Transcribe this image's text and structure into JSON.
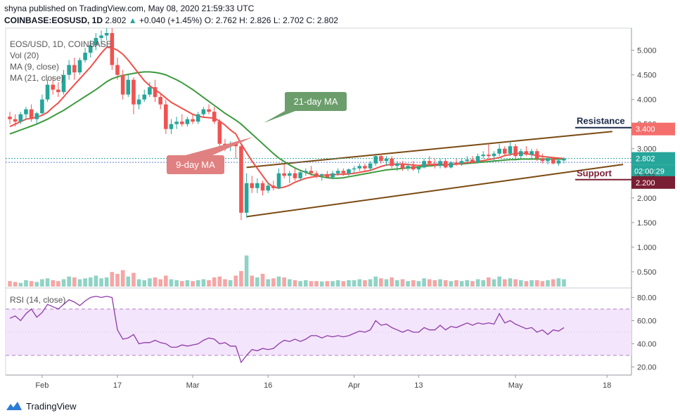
{
  "header": {
    "published_line": "shyna published on TradingView.com, May 08, 2020 21:59:33 UTC",
    "symbol": "COINBASE:EOSUSD, 1D",
    "last": "2.802",
    "change": "+0.040 (+1.45%)",
    "open": "O: 2.762",
    "high": "H: 2.826",
    "low": "L: 2.702",
    "close": "C: 2.802"
  },
  "legend": {
    "title": "EOS/USD, 1D, COINBASE",
    "vol": "Vol (20)",
    "ma9": "MA (9, close)",
    "ma21": "MA (21, close)",
    "rsi": "RSI (14, close)"
  },
  "annotations": {
    "ma21_callout": "21-day MA",
    "ma9_callout": "9-day MA",
    "resistance": "Resistance",
    "support": "Support"
  },
  "price_badges": {
    "resistance": "3.400",
    "last": "2.802",
    "countdown": "02:00:29",
    "support_line": "2.723",
    "support": "2.200"
  },
  "footer": {
    "brand": "TradingView"
  },
  "colors": {
    "up": "#26a69a",
    "down": "#ef5350",
    "ma9": "#f0504a",
    "ma21": "#3e9a3e",
    "channel": "#7b4a12",
    "rsi": "#8e3aa8",
    "callout_green": "#6b9e6b",
    "callout_red": "#e08080",
    "resistance_badge": "#f46f6c",
    "support_badge": "#7a1f33"
  },
  "chart_data": {
    "type": "candlestick",
    "price_axis": {
      "ticks": [
        "5.000",
        "4.500",
        "4.000",
        "3.500",
        "3.000",
        "2.500",
        "2.000",
        "1.500",
        "1.000",
        "0.500"
      ],
      "ylim": [
        0.2,
        5.45
      ]
    },
    "rsi_axis": {
      "ticks": [
        "80.00",
        "60.00",
        "40.00",
        "20.00"
      ],
      "ylim": [
        13,
        87
      ],
      "bands": [
        30,
        70
      ]
    },
    "x_ticks": [
      {
        "label": "Feb",
        "i": 6
      },
      {
        "label": "17",
        "i": 20
      },
      {
        "label": "Mar",
        "i": 34
      },
      {
        "label": "16",
        "i": 48
      },
      {
        "label": "Apr",
        "i": 64
      },
      {
        "label": "13",
        "i": 76
      },
      {
        "label": "May",
        "i": 94
      },
      {
        "label": "18",
        "i": 111
      }
    ],
    "ohlc": [
      [
        3.65,
        3.75,
        3.5,
        3.6
      ],
      [
        3.6,
        3.7,
        3.45,
        3.55
      ],
      [
        3.55,
        3.75,
        3.5,
        3.7
      ],
      [
        3.7,
        3.85,
        3.6,
        3.8
      ],
      [
        3.8,
        3.9,
        3.55,
        3.6
      ],
      [
        3.6,
        3.75,
        3.5,
        3.72
      ],
      [
        3.72,
        4.1,
        3.7,
        4.0
      ],
      [
        4.0,
        4.4,
        3.95,
        4.3
      ],
      [
        4.3,
        4.45,
        4.1,
        4.2
      ],
      [
        4.2,
        4.35,
        4.05,
        4.15
      ],
      [
        4.15,
        4.6,
        4.1,
        4.5
      ],
      [
        4.5,
        4.8,
        4.4,
        4.7
      ],
      [
        4.7,
        4.85,
        4.4,
        4.55
      ],
      [
        4.55,
        4.85,
        4.5,
        4.8
      ],
      [
        4.8,
        5.05,
        4.75,
        4.95
      ],
      [
        4.95,
        5.2,
        4.85,
        5.1
      ],
      [
        5.1,
        5.35,
        5.0,
        5.25
      ],
      [
        5.25,
        5.4,
        5.1,
        5.3
      ],
      [
        5.3,
        5.45,
        5.2,
        5.35
      ],
      [
        5.35,
        5.45,
        4.6,
        4.7
      ],
      [
        4.7,
        4.85,
        4.4,
        4.5
      ],
      [
        4.5,
        4.6,
        4.0,
        4.1
      ],
      [
        4.1,
        4.5,
        4.05,
        4.4
      ],
      [
        4.4,
        4.45,
        3.7,
        3.9
      ],
      [
        3.9,
        4.1,
        3.8,
        4.0
      ],
      [
        4.0,
        4.2,
        3.95,
        4.1
      ],
      [
        4.1,
        4.35,
        4.05,
        4.25
      ],
      [
        4.25,
        4.4,
        3.95,
        4.05
      ],
      [
        4.05,
        4.1,
        3.8,
        3.9
      ],
      [
        3.9,
        4.0,
        3.3,
        3.4
      ],
      [
        3.4,
        3.6,
        3.3,
        3.5
      ],
      [
        3.5,
        3.65,
        3.4,
        3.55
      ],
      [
        3.55,
        3.7,
        3.45,
        3.5
      ],
      [
        3.5,
        3.65,
        3.45,
        3.6
      ],
      [
        3.6,
        3.7,
        3.5,
        3.55
      ],
      [
        3.55,
        3.75,
        3.5,
        3.7
      ],
      [
        3.7,
        3.85,
        3.65,
        3.8
      ],
      [
        3.8,
        3.9,
        3.7,
        3.75
      ],
      [
        3.75,
        3.85,
        3.5,
        3.55
      ],
      [
        3.55,
        3.6,
        3.0,
        3.1
      ],
      [
        3.1,
        3.2,
        2.95,
        3.05
      ],
      [
        3.05,
        3.15,
        2.95,
        3.1
      ],
      [
        3.1,
        3.15,
        2.8,
        3.05
      ],
      [
        3.05,
        3.1,
        1.55,
        1.7
      ],
      [
        1.7,
        2.5,
        1.6,
        2.3
      ],
      [
        2.3,
        2.45,
        2.1,
        2.2
      ],
      [
        2.2,
        2.4,
        2.1,
        2.3
      ],
      [
        2.3,
        2.35,
        2.05,
        2.15
      ],
      [
        2.15,
        2.3,
        2.1,
        2.25
      ],
      [
        2.25,
        2.35,
        2.15,
        2.2
      ],
      [
        2.2,
        2.6,
        2.18,
        2.5
      ],
      [
        2.5,
        2.7,
        2.4,
        2.45
      ],
      [
        2.45,
        2.55,
        2.3,
        2.5
      ],
      [
        2.5,
        2.6,
        2.35,
        2.4
      ],
      [
        2.4,
        2.55,
        2.35,
        2.52
      ],
      [
        2.52,
        2.6,
        2.45,
        2.55
      ],
      [
        2.55,
        2.65,
        2.45,
        2.5
      ],
      [
        2.5,
        2.55,
        2.4,
        2.45
      ],
      [
        2.45,
        2.5,
        2.35,
        2.48
      ],
      [
        2.48,
        2.55,
        2.4,
        2.42
      ],
      [
        2.42,
        2.55,
        2.38,
        2.5
      ],
      [
        2.5,
        2.6,
        2.45,
        2.55
      ],
      [
        2.55,
        2.6,
        2.45,
        2.5
      ],
      [
        2.5,
        2.6,
        2.45,
        2.58
      ],
      [
        2.58,
        2.65,
        2.5,
        2.6
      ],
      [
        2.6,
        2.7,
        2.55,
        2.65
      ],
      [
        2.65,
        2.7,
        2.55,
        2.6
      ],
      [
        2.6,
        2.75,
        2.55,
        2.7
      ],
      [
        2.7,
        2.9,
        2.65,
        2.85
      ],
      [
        2.85,
        2.9,
        2.7,
        2.75
      ],
      [
        2.75,
        2.85,
        2.65,
        2.8
      ],
      [
        2.8,
        2.85,
        2.6,
        2.65
      ],
      [
        2.65,
        2.75,
        2.55,
        2.7
      ],
      [
        2.7,
        2.75,
        2.55,
        2.6
      ],
      [
        2.6,
        2.7,
        2.55,
        2.65
      ],
      [
        2.65,
        2.75,
        2.55,
        2.58
      ],
      [
        2.58,
        2.65,
        2.5,
        2.62
      ],
      [
        2.62,
        2.8,
        2.6,
        2.75
      ],
      [
        2.75,
        2.85,
        2.65,
        2.7
      ],
      [
        2.7,
        2.8,
        2.6,
        2.65
      ],
      [
        2.65,
        2.8,
        2.6,
        2.75
      ],
      [
        2.75,
        2.8,
        2.6,
        2.62
      ],
      [
        2.62,
        2.75,
        2.6,
        2.72
      ],
      [
        2.72,
        2.8,
        2.65,
        2.7
      ],
      [
        2.7,
        2.8,
        2.65,
        2.75
      ],
      [
        2.75,
        2.85,
        2.7,
        2.78
      ],
      [
        2.78,
        2.85,
        2.7,
        2.72
      ],
      [
        2.72,
        2.9,
        2.7,
        2.85
      ],
      [
        2.85,
        2.95,
        2.8,
        2.88
      ],
      [
        2.88,
        3.1,
        2.8,
        2.85
      ],
      [
        2.85,
        2.95,
        2.75,
        2.9
      ],
      [
        2.9,
        3.1,
        2.85,
        3.0
      ],
      [
        3.0,
        3.05,
        2.85,
        2.9
      ],
      [
        2.9,
        3.15,
        2.85,
        3.05
      ],
      [
        3.05,
        3.1,
        2.8,
        2.85
      ],
      [
        2.85,
        3.0,
        2.8,
        2.95
      ],
      [
        2.95,
        3.05,
        2.85,
        2.88
      ],
      [
        2.88,
        3.0,
        2.8,
        2.95
      ],
      [
        2.95,
        3.0,
        2.75,
        2.8
      ],
      [
        2.8,
        2.9,
        2.7,
        2.75
      ],
      [
        2.75,
        2.85,
        2.68,
        2.8
      ],
      [
        2.8,
        2.83,
        2.68,
        2.7
      ],
      [
        2.7,
        2.8,
        2.65,
        2.76
      ],
      [
        2.762,
        2.826,
        2.702,
        2.802
      ]
    ],
    "volume": [
      0.3,
      0.25,
      0.2,
      0.35,
      0.3,
      0.25,
      0.4,
      0.45,
      0.35,
      0.3,
      0.4,
      0.55,
      0.5,
      0.4,
      0.45,
      0.5,
      0.6,
      0.45,
      0.5,
      0.8,
      0.7,
      0.9,
      0.55,
      0.75,
      0.4,
      0.35,
      0.45,
      0.5,
      0.4,
      0.6,
      0.4,
      0.35,
      0.3,
      0.35,
      0.3,
      0.35,
      0.4,
      0.35,
      0.5,
      0.55,
      0.4,
      0.35,
      0.6,
      0.85,
      1.7,
      0.6,
      0.5,
      0.7,
      0.4,
      0.45,
      0.55,
      0.5,
      0.4,
      0.35,
      0.3,
      0.35,
      0.3,
      0.3,
      0.28,
      0.3,
      0.3,
      0.35,
      0.3,
      0.35,
      0.35,
      0.4,
      0.35,
      0.4,
      0.55,
      0.45,
      0.4,
      0.5,
      0.35,
      0.4,
      0.3,
      0.35,
      0.3,
      0.45,
      0.4,
      0.35,
      0.4,
      0.35,
      0.3,
      0.35,
      0.3,
      0.35,
      0.3,
      0.4,
      0.35,
      0.5,
      0.4,
      0.55,
      0.4,
      0.45,
      0.4,
      0.35,
      0.3,
      0.35,
      0.35,
      0.3,
      0.35,
      0.4,
      0.45,
      0.4
    ],
    "rsi": [
      62,
      64,
      60,
      66,
      70,
      63,
      67,
      74,
      72,
      70,
      74,
      78,
      76,
      73,
      77,
      80,
      81,
      80,
      81,
      80,
      52,
      44,
      45,
      48,
      40,
      41,
      41,
      43,
      41,
      40,
      37,
      37,
      39,
      38,
      39,
      40,
      43,
      45,
      44,
      40,
      41,
      38,
      38,
      24,
      30,
      35,
      34,
      36,
      35,
      36,
      40,
      43,
      42,
      44,
      42,
      44,
      47,
      47,
      45,
      47,
      46,
      47,
      46,
      47,
      49,
      51,
      50,
      52,
      60,
      56,
      57,
      54,
      52,
      50,
      52,
      50,
      50,
      54,
      52,
      52,
      56,
      52,
      55,
      54,
      56,
      58,
      56,
      58,
      57,
      58,
      57,
      66,
      58,
      60,
      57,
      55,
      53,
      54,
      50,
      52,
      48,
      52,
      51,
      54
    ],
    "ma9": [
      3.45,
      3.5,
      3.55,
      3.6,
      3.62,
      3.64,
      3.68,
      3.74,
      3.84,
      3.93,
      4.05,
      4.18,
      4.3,
      4.42,
      4.54,
      4.66,
      4.8,
      4.94,
      5.06,
      5.05,
      5.0,
      4.92,
      4.8,
      4.66,
      4.52,
      4.38,
      4.28,
      4.2,
      4.12,
      4.03,
      3.94,
      3.88,
      3.82,
      3.76,
      3.7,
      3.66,
      3.64,
      3.63,
      3.62,
      3.56,
      3.48,
      3.38,
      3.3,
      3.1,
      2.92,
      2.75,
      2.6,
      2.45,
      2.3,
      2.22,
      2.2,
      2.22,
      2.26,
      2.32,
      2.36,
      2.4,
      2.42,
      2.44,
      2.46,
      2.47,
      2.47,
      2.48,
      2.48,
      2.49,
      2.5,
      2.52,
      2.54,
      2.56,
      2.6,
      2.64,
      2.67,
      2.68,
      2.69,
      2.69,
      2.68,
      2.67,
      2.66,
      2.67,
      2.68,
      2.68,
      2.69,
      2.68,
      2.68,
      2.69,
      2.7,
      2.72,
      2.73,
      2.74,
      2.76,
      2.78,
      2.8,
      2.82,
      2.86,
      2.88,
      2.9,
      2.91,
      2.9,
      2.88,
      2.86,
      2.84,
      2.83,
      2.82,
      2.81,
      2.8
    ],
    "ma21": [
      3.3,
      3.34,
      3.38,
      3.42,
      3.46,
      3.5,
      3.55,
      3.6,
      3.66,
      3.72,
      3.78,
      3.85,
      3.92,
      3.99,
      4.06,
      4.13,
      4.2,
      4.28,
      4.36,
      4.42,
      4.46,
      4.49,
      4.51,
      4.53,
      4.55,
      4.56,
      4.56,
      4.55,
      4.53,
      4.5,
      4.45,
      4.4,
      4.34,
      4.27,
      4.2,
      4.12,
      4.04,
      3.96,
      3.88,
      3.8,
      3.72,
      3.65,
      3.58,
      3.5,
      3.4,
      3.3,
      3.2,
      3.1,
      3.0,
      2.9,
      2.81,
      2.74,
      2.67,
      2.61,
      2.56,
      2.52,
      2.48,
      2.45,
      2.43,
      2.41,
      2.4,
      2.4,
      2.41,
      2.43,
      2.45,
      2.47,
      2.49,
      2.51,
      2.53,
      2.55,
      2.57,
      2.58,
      2.59,
      2.6,
      2.61,
      2.62,
      2.63,
      2.64,
      2.65,
      2.66,
      2.67,
      2.67,
      2.68,
      2.69,
      2.69,
      2.7,
      2.71,
      2.72,
      2.73,
      2.74,
      2.75,
      2.76,
      2.77,
      2.78,
      2.78,
      2.79,
      2.79,
      2.79,
      2.79,
      2.79,
      2.79,
      2.79,
      2.79,
      2.79
    ],
    "channel": {
      "upper": [
        [
          44,
          2.62
        ],
        [
          112,
          3.35
        ]
      ],
      "lower": [
        [
          44,
          1.62
        ],
        [
          114,
          2.68
        ]
      ]
    },
    "levels": {
      "resistance": 3.4,
      "support": 2.2,
      "last": 2.802,
      "support_line": 2.723
    }
  }
}
